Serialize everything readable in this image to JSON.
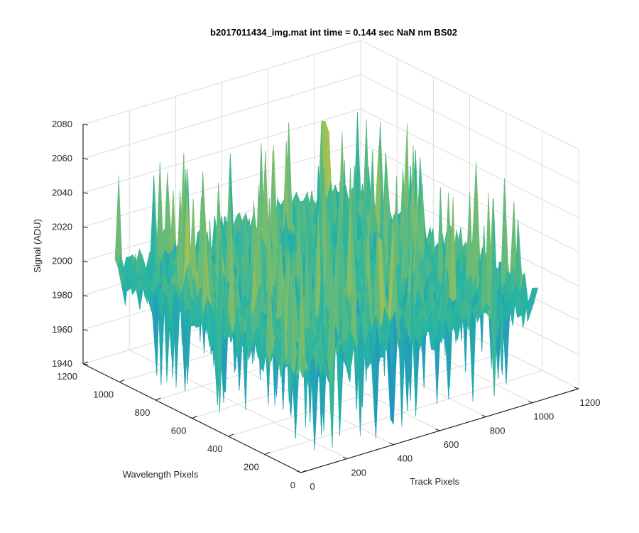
{
  "chart_data": {
    "type": "surface",
    "title": "b2017011434_img.mat int time = 0.144 sec  NaN nm BS02",
    "xlabel": "Track Pixels",
    "ylabel": "Wavelength Pixels",
    "zlabel": "Signal (ADU)",
    "xlim": [
      0,
      1200
    ],
    "ylim": [
      0,
      1200
    ],
    "zlim": [
      1940,
      2080
    ],
    "x_ticks": [
      "0",
      "200",
      "400",
      "600",
      "800",
      "1000",
      "1200"
    ],
    "y_ticks": [
      "0",
      "200",
      "400",
      "600",
      "800",
      "1000",
      "1200"
    ],
    "z_ticks": [
      "1940",
      "1960",
      "1980",
      "2000",
      "2020",
      "2040",
      "2060",
      "2080"
    ],
    "surface_extent": {
      "x": [
        0,
        1024
      ],
      "y": [
        0,
        1024
      ]
    },
    "signal_summary": {
      "baseline": 2000,
      "typical_min": 1955,
      "typical_max": 2045,
      "peak": 2068
    },
    "grid": true,
    "colormap": "parula",
    "colors": {
      "low": "#1f7fd6",
      "mid": "#26b4a4",
      "high": "#c9c43a"
    }
  }
}
